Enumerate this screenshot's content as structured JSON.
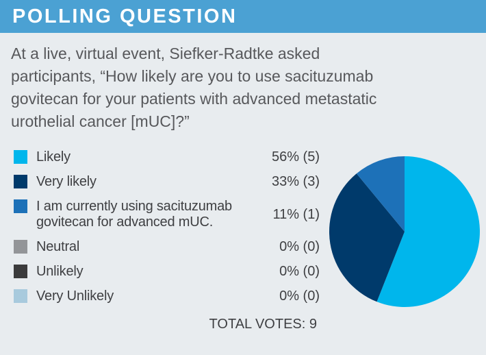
{
  "header": {
    "title": "POLLING QUESTION"
  },
  "question": {
    "full_text": "At a live, virtual event, Siefker-Radtke asked participants, “How likely are you to use sacituzumab govitecan for your patients with advanced metastatic urothelial cancer [mUC]?”",
    "lines": [
      "At a live, virtual event, Siefker-Radtke asked",
      "participants, “How likely are you to use sacituzumab",
      "govitecan for your patients with advanced metastatic",
      "urothelial cancer [mUC]?”"
    ]
  },
  "poll": {
    "options": [
      {
        "label": "Likely",
        "pct": 56,
        "votes": 5,
        "display": "56% (5)",
        "color": "#00b6ec"
      },
      {
        "label": "Very likely",
        "pct": 33,
        "votes": 3,
        "display": "33% (3)",
        "color": "#003a6b"
      },
      {
        "label": "I am currently using sacituzumab govitecan for advanced mUC.",
        "pct": 11,
        "votes": 1,
        "display": "11% (1)",
        "color": "#1d71b8"
      },
      {
        "label": "Neutral",
        "pct": 0,
        "votes": 0,
        "display": "0% (0)",
        "color": "#939598"
      },
      {
        "label": "Unlikely",
        "pct": 0,
        "votes": 0,
        "display": "0% (0)",
        "color": "#3b3b3c"
      },
      {
        "label": "Very Unlikely",
        "pct": 0,
        "votes": 0,
        "display": "0% (0)",
        "color": "#a8cadd"
      }
    ],
    "total_label": "TOTAL VOTES: 9",
    "total_votes": 9
  },
  "chart_data": {
    "type": "pie",
    "title": "How likely are you to use sacituzumab govitecan for your patients with advanced metastatic urothelial cancer [mUC]?",
    "categories": [
      "Likely",
      "Very likely",
      "I am currently using sacituzumab govitecan for advanced mUC.",
      "Neutral",
      "Unlikely",
      "Very Unlikely"
    ],
    "values": [
      56,
      33,
      11,
      0,
      0,
      0
    ],
    "counts": [
      5,
      3,
      1,
      0,
      0,
      0
    ],
    "total": 9,
    "unit": "percent",
    "colors": [
      "#00b6ec",
      "#003a6b",
      "#1d71b8",
      "#939598",
      "#3b3b3c",
      "#a8cadd"
    ],
    "legend_position": "left",
    "start_angle_deg": 0,
    "direction": "clockwise"
  },
  "colors": {
    "header_bg": "#4ba1d3",
    "card_bg": "#e8ecef",
    "header_text": "#ffffff",
    "question_text": "#57585b",
    "legend_text": "#3e3f42"
  }
}
